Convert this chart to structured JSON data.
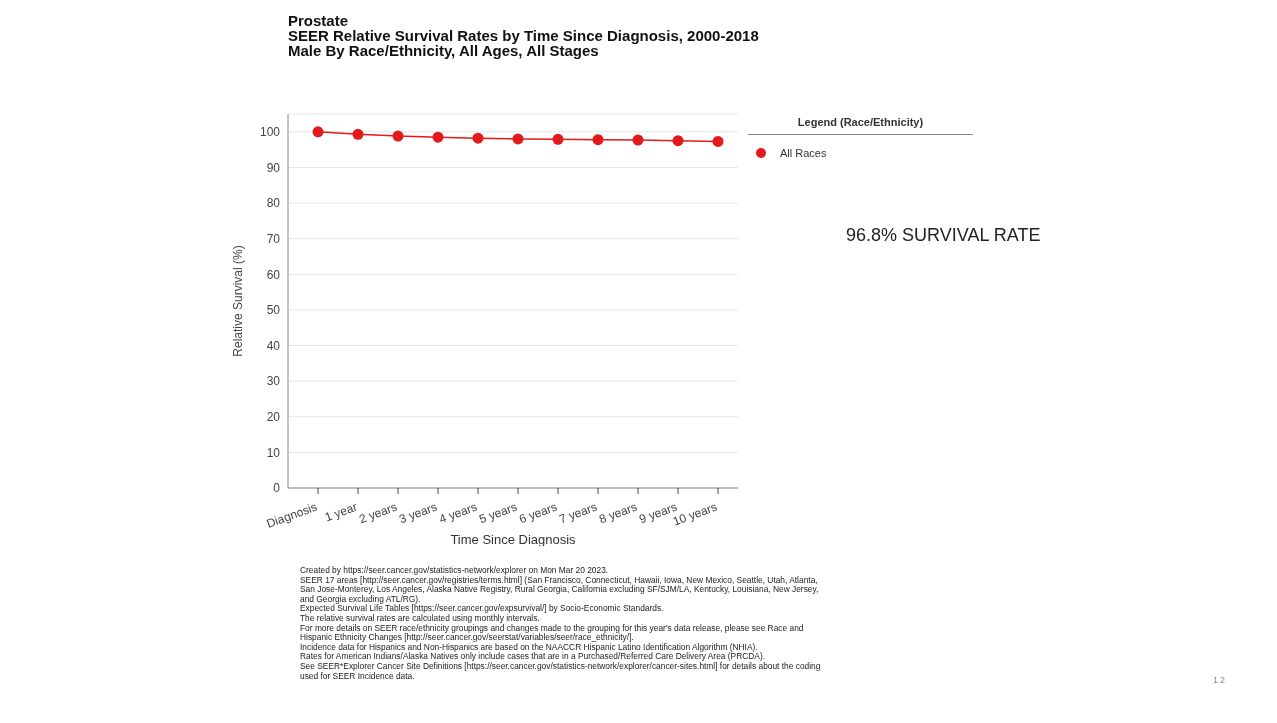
{
  "chart_data": {
    "type": "line",
    "title": "Prostate",
    "subtitle": "SEER Relative Survival Rates by Time Since Diagnosis, 2000-2018\nMale By Race/Ethnicity, All Ages, All Stages",
    "xlabel": "Time Since Diagnosis",
    "ylabel": "Relative Survival (%)",
    "legend_title": "Legend (Race/Ethnicity)",
    "categories": [
      "Diagnosis",
      "1 year",
      "2 years",
      "3 years",
      "4 years",
      "5 years",
      "6 years",
      "7 years",
      "8 years",
      "9 years",
      "10 years"
    ],
    "series": [
      {
        "name": "All Races",
        "color": "#e31a1c",
        "values": [
          100,
          99.3,
          98.8,
          98.5,
          98.2,
          98.0,
          97.9,
          97.8,
          97.7,
          97.5,
          97.3
        ]
      }
    ],
    "ylim": [
      0,
      105
    ],
    "yticks": [
      0,
      10,
      20,
      30,
      40,
      50,
      60,
      70,
      80,
      90,
      100
    ],
    "grid": "y",
    "legend": "top right",
    "marker": "circle",
    "line_style": "solid",
    "annotations": [
      "96.8% SURVIVAL RATE",
      "Created by https://seer.cancer.gov/statistics-network/explorer on Mon Mar 20 2023.",
      "SEER 17 areas [http://seer.cancer.gov/registries/terms.html] (San Francisco, Connecticut, Hawaii, Iowa, New Mexico, Seattle, Utah, Atlanta,",
      "San Jose-Monterey, Los Angeles, Alaska Native Registry, Rural Georgia, California excluding SF/SJM/LA, Kentucky, Louisiana, New Jersey,",
      "and Georgia excluding ATL/RG).",
      "Expected Survival Life Tables [https://seer.cancer.gov/expsurvival/] by Socio-Economic Standards.",
      "The relative survival rates are calculated using monthly intervals.",
      "For more details on SEER race/ethnicity groupings and changes made to the grouping for this year's data release, please see Race and",
      "Hispanic Ethnicity Changes [http://seer.cancer.gov/seerstat/variables/seer/race_ethnicity/].",
      "Incidence data for Hispanics and Non-Hispanics are based on the NAACCR Hispanic Latino Identification Algorithm (NHIA).",
      "Rates for American Indians/Alaska Natives only include cases that are in a Purchased/Referred Care Delivery Area (PRCDA).",
      "See SEER*Explorer Cancer Site Definitions [https://seer.cancer.gov/statistics-network/explorer/cancer-sites.html] for details about the coding",
      "used for SEER Incidence data.",
      "12"
    ]
  }
}
